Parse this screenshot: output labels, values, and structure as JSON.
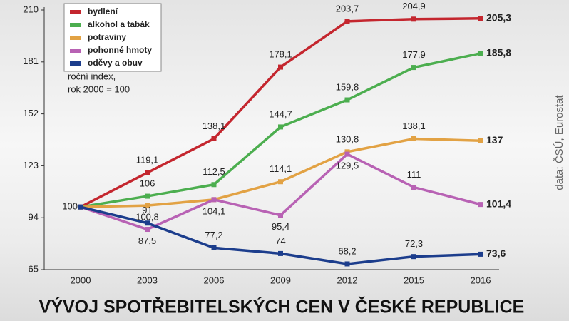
{
  "chart_data": {
    "type": "line",
    "title": "VÝVOJ SPOTŘEBITELSKÝCH CEN V ČESKÉ REPUBLICE",
    "annotation": [
      "roční index,",
      "rok 2000 = 100"
    ],
    "source": "data: ČSÚ, Eurostat",
    "categories": [
      "2000",
      "2003",
      "2006",
      "2009",
      "2012",
      "2015",
      "2016"
    ],
    "ylim": [
      65,
      210
    ],
    "yticks": [
      65,
      94,
      123,
      152,
      181,
      210
    ],
    "legend": "top-left",
    "series": [
      {
        "name": "bydlení",
        "color": "#c4262e",
        "values": [
          100,
          119.1,
          138.1,
          178.1,
          203.7,
          204.9,
          205.3
        ],
        "value_labels": [
          "100",
          "119,1",
          "138,1",
          "178,1",
          "203,7",
          "204,9",
          "205,3"
        ]
      },
      {
        "name": "alkohol a tabák",
        "color": "#4cae4f",
        "values": [
          100,
          106,
          112.5,
          144.7,
          159.8,
          177.9,
          185.8
        ],
        "value_labels": [
          null,
          "106",
          "112,5",
          "144,7",
          "159,8",
          "177,9",
          "185,8"
        ]
      },
      {
        "name": "potraviny",
        "color": "#e2a244",
        "values": [
          100,
          100.8,
          104.1,
          114.1,
          130.8,
          138.1,
          137
        ],
        "value_labels": [
          null,
          "100,8",
          null,
          "114,1",
          "130,8",
          "138,1",
          "137"
        ]
      },
      {
        "name": "pohonné hmoty",
        "color": "#b862b4",
        "values": [
          100,
          87.5,
          104.1,
          95.4,
          129.5,
          111,
          101.4
        ],
        "value_labels": [
          null,
          "87,5",
          "104,1",
          "95,4",
          "129,5",
          "111",
          "101,4"
        ]
      },
      {
        "name": "oděvy a obuv",
        "color": "#1c3d8c",
        "values": [
          100,
          91,
          77.2,
          74,
          68.2,
          72.3,
          73.6
        ],
        "value_labels": [
          null,
          "91",
          "77,2",
          "74",
          "68,2",
          "72,3",
          "73,6"
        ]
      }
    ]
  }
}
